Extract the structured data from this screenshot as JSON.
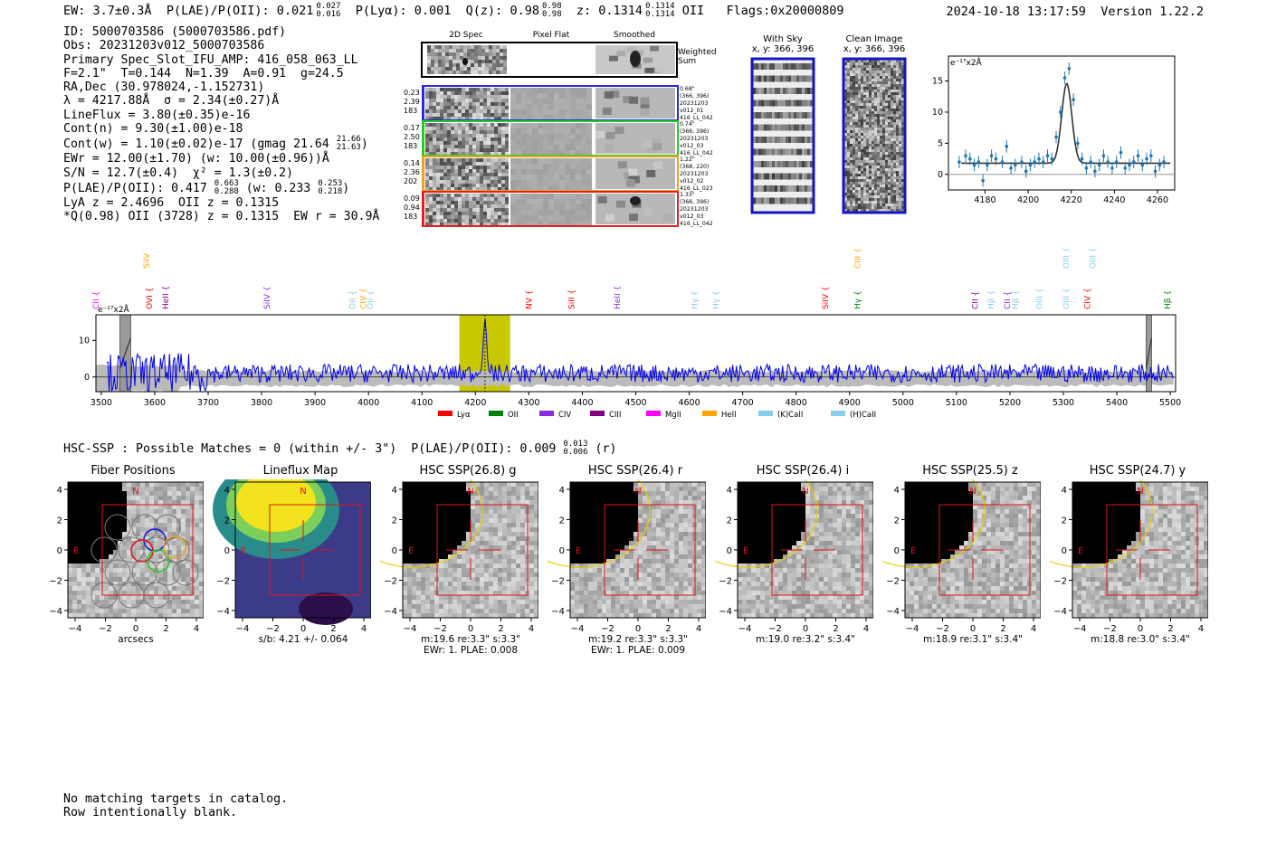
{
  "header": {
    "ew": "EW: 3.7±0.3Å",
    "plae": "P(LAE)/P(OII): 0.021",
    "plae_hi": "0.027",
    "plae_lo": "0.016",
    "plya": "P(Lyα): 0.001",
    "qz": "Q(z): 0.98",
    "qz_hi": "0.98",
    "qz_lo": "0.98",
    "z": "z: 0.1314",
    "z_hi": "0.1314",
    "z_lo": "0.1314",
    "z_line": "OII",
    "flags": "Flags:0x20000809",
    "datetime": "2024-10-18 13:17:59",
    "version": "Version 1.22.2"
  },
  "info": {
    "id": "ID: 5000703586 (5000703586.pdf)",
    "obs": "Obs: 20231203v012_5000703586",
    "primary": "Primary Spec_Slot_IFU_AMP: 416_058_063_LL",
    "fwhm": "F=2.1\"  T=0.144  N=1.39  A=0.91  g=24.5",
    "radec": "RA,Dec (30.978024,-1.152731)",
    "lambda": "λ = 4217.88Å  σ = 2.34(±0.27)Å",
    "lineflux": "LineFlux = 3.80(±0.35)e-16",
    "contn": "Cont(n) = 9.30(±1.00)e-18",
    "contw": "Cont(w) = 1.10(±0.02)e-17 (gmag 21.64",
    "contw_hi": "21.66",
    "contw_lo": "21.63",
    "contw_close": ")",
    "ewr": "EWr = 12.00(±1.70) (w: 10.00(±0.96))Å",
    "sn": "S/N = 12.7(±0.4)  χ² = 1.3(±0.2)",
    "plae2": "P(LAE)/P(OII): 0.417",
    "plae2_hi": "0.663",
    "plae2_lo": "0.288",
    "plae2_w": " (w: 0.233",
    "plae2_w_hi": "0.253",
    "plae2_w_lo": "0.218",
    "plae2_close": ")",
    "lya": "LyA z = 2.4696  OII z = 0.1315",
    "qline": "*Q(0.98) OII (3728) z = 0.1315  EW r = 30.9Å"
  },
  "cutouts": {
    "col_2d": "2D Spec",
    "col_flat": "Pixel Flat",
    "col_smooth": "Smoothed",
    "weighted": "Weighted Sum",
    "rows": [
      {
        "l1": "0.23",
        "l2": "2.39",
        "l3": "183",
        "r1": "0.68\"",
        "r2": "(366, 396)",
        "r3": "20231203",
        "r4": "v012_01",
        "r5": "416_LL_042",
        "color": "#2b2bd6"
      },
      {
        "l1": "0.17",
        "l2": "2.50",
        "l3": "183",
        "r1": "0.74\"",
        "r2": "(366, 396)",
        "r3": "20231203",
        "r4": "v012_03",
        "r5": "416_LL_042",
        "color": "#22cc22"
      },
      {
        "l1": "0.14",
        "l2": "2.36",
        "l3": "202",
        "r1": "1.22\"",
        "r2": "(368, 220)",
        "r3": "20231203",
        "r4": "v012_02",
        "r5": "416_LL_023",
        "color": "#f0a020"
      },
      {
        "l1": "0.09",
        "l2": "0.94",
        "l3": "183",
        "r1": "1.33\"",
        "r2": "(366, 396)",
        "r3": "20231203",
        "r4": "v012_03",
        "r5": "416_LL_042",
        "color": "#e02020"
      }
    ]
  },
  "sky": {
    "with_sky": "With Sky",
    "with_sky_xy": "x, y: 366, 396",
    "clean": "Clean Image",
    "clean_xy": "x, y: 366, 396"
  },
  "chart_data": [
    {
      "type": "scatter",
      "title": "",
      "unit_label": "e⁻¹⁷x2Å",
      "xlim": [
        4163,
        4268
      ],
      "ylim": [
        -2.5,
        19
      ],
      "xticks": [
        4180,
        4200,
        4220,
        4240,
        4260
      ],
      "yticks": [
        0,
        5,
        10,
        15
      ],
      "x": [
        4168,
        4171,
        4173,
        4175,
        4177,
        4179,
        4181,
        4183,
        4185,
        4188,
        4190,
        4192,
        4194,
        4197,
        4199,
        4201,
        4203,
        4205,
        4207,
        4209,
        4211,
        4213,
        4215,
        4217,
        4219,
        4221,
        4223,
        4225,
        4227,
        4229,
        4231,
        4233,
        4235,
        4237,
        4239,
        4241,
        4243,
        4245,
        4247,
        4249,
        4251,
        4253,
        4255,
        4257,
        4259,
        4261,
        4263
      ],
      "values": [
        2.0,
        3.0,
        2.5,
        1.5,
        2.0,
        -1.0,
        1.5,
        3.0,
        2.5,
        2.0,
        4.5,
        1.0,
        1.5,
        2.0,
        0.5,
        1.5,
        2.0,
        2.5,
        2.0,
        3.0,
        2.5,
        6.0,
        10.0,
        15.5,
        17.0,
        12.0,
        5.0,
        2.5,
        1.0,
        2.0,
        0.5,
        1.5,
        3.0,
        2.0,
        1.0,
        2.0,
        3.5,
        1.0,
        1.5,
        2.0,
        3.0,
        1.5,
        2.5,
        3.0,
        0.5,
        1.5,
        2.0
      ],
      "fit": {
        "center": 4217.9,
        "sigma": 2.34,
        "amplitude": 12.8,
        "continuum": 1.8
      }
    },
    {
      "type": "line",
      "title": "",
      "unit_label": "e⁻¹⁷x2Å",
      "xlim": [
        3490,
        5510
      ],
      "ylim": [
        -4,
        17
      ],
      "xticks": [
        3500,
        3600,
        3700,
        3800,
        3900,
        4000,
        4100,
        4200,
        4300,
        4400,
        4500,
        4600,
        4700,
        4800,
        4900,
        5000,
        5100,
        5200,
        5300,
        5400,
        5500
      ],
      "yticks": [
        0,
        10
      ],
      "highlight_band": [
        4170,
        4265
      ],
      "line_center": 4217.9,
      "masked": [
        [
          3535,
          3555
        ],
        [
          5455,
          5465
        ]
      ],
      "legend": [
        "Lyα",
        "OII",
        "CIV",
        "CIII",
        "MgII",
        "HeII",
        "(K)CaII",
        "(H)CaII"
      ],
      "legend_colors": [
        "#ff0000",
        "#008000",
        "#8a2be2",
        "#800080",
        "#ff00ff",
        "#ffa500",
        "#87ceeb",
        "#87ceeb"
      ],
      "lines_top": [
        {
          "x": 3490,
          "label": "CII",
          "color": "#ff00ff"
        },
        {
          "x": 3590,
          "label": "OVI",
          "color": "#ff0000"
        },
        {
          "x": 3620,
          "label": "HeII",
          "color": "#800080"
        },
        {
          "x": 3585,
          "label": "SiIV",
          "color": "#ffa500",
          "high": true
        },
        {
          "x": 3810,
          "label": "SiIV",
          "color": "#8a2be2"
        },
        {
          "x": 3970,
          "label": "OII",
          "color": "#87ceeb"
        },
        {
          "x": 3990,
          "label": "CIV",
          "color": "#ffa500"
        },
        {
          "x": 4003,
          "label": "OII",
          "color": "#87ceeb"
        },
        {
          "x": 4300,
          "label": "NV",
          "color": "#ff0000"
        },
        {
          "x": 4380,
          "label": "SiII",
          "color": "#ff0000"
        },
        {
          "x": 4465,
          "label": "HeII",
          "color": "#8a2be2"
        },
        {
          "x": 4610,
          "label": "Hγ",
          "color": "#87ceeb"
        },
        {
          "x": 4650,
          "label": "Hγ",
          "color": "#87ceeb"
        },
        {
          "x": 4855,
          "label": "SiIV",
          "color": "#ff0000"
        },
        {
          "x": 4915,
          "label": "Hγ",
          "color": "#008000"
        },
        {
          "x": 4915,
          "label": "CIII",
          "color": "#ffa500",
          "high": true
        },
        {
          "x": 5135,
          "label": "CII",
          "color": "#800080"
        },
        {
          "x": 5165,
          "label": "Hβ",
          "color": "#87ceeb"
        },
        {
          "x": 5195,
          "label": "CII",
          "color": "#8a2be2"
        },
        {
          "x": 5210,
          "label": "Hβ",
          "color": "#87ceeb"
        },
        {
          "x": 5255,
          "label": "OIII",
          "color": "#87ceeb"
        },
        {
          "x": 5305,
          "label": "OIII",
          "color": "#87ceeb"
        },
        {
          "x": 5305,
          "label": "OIII",
          "color": "#87ceeb",
          "high": true
        },
        {
          "x": 5355,
          "label": "OIII",
          "color": "#87ceeb",
          "high": true
        },
        {
          "x": 5345,
          "label": "CIV",
          "color": "#ff0000"
        },
        {
          "x": 5495,
          "label": "Hβ",
          "color": "#008000"
        }
      ]
    }
  ],
  "hsc": {
    "line": "HSC-SSP : Possible Matches = 0 (within +/- 3\")  P(LAE)/P(OII): 0.009",
    "hi": "0.013",
    "lo": "0.006",
    "band": " (r)"
  },
  "thumbs": [
    {
      "title": "Fiber Positions",
      "cap1": "arcsecs",
      "cap2": ""
    },
    {
      "title": "Lineflux Map",
      "cap1": "s/b: 4.21 +/- 0.064",
      "cap2": ""
    },
    {
      "title": "HSC SSP(26.8) g",
      "cap1": "m:19.6  re:3.3\"  s:3.3\"",
      "cap2": "EWr: 1. PLAE: 0.008"
    },
    {
      "title": "HSC SSP(26.4) r",
      "cap1": "m:19.2  re:3.3\"  s:3.3\"",
      "cap2": "EWr: 1. PLAE: 0.009"
    },
    {
      "title": "HSC SSP(26.4) i",
      "cap1": "m:19.0  re:3.2\"  s:3.4\"",
      "cap2": ""
    },
    {
      "title": "HSC SSP(25.5) z",
      "cap1": "m:18.9  re:3.1\"  s:3.4\"",
      "cap2": ""
    },
    {
      "title": "HSC SSP(24.7) y",
      "cap1": "m:18.8  re:3.0\"  s:3.4\"",
      "cap2": ""
    }
  ],
  "thumb_axes": {
    "ticks": [
      "−4",
      "−2",
      "0",
      "2",
      "4"
    ],
    "n": "N",
    "e": "E"
  },
  "footer": {
    "l1": "No matching targets in catalog.",
    "l2": "Row intentionally blank."
  }
}
